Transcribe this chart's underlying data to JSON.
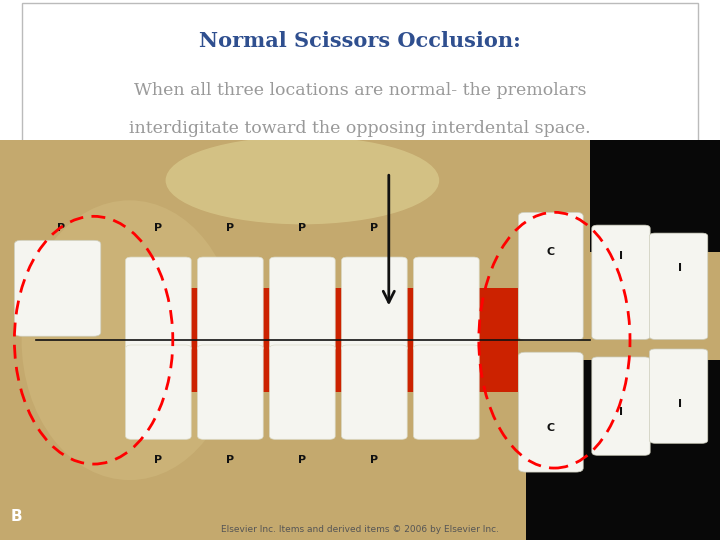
{
  "title": "Normal Scissors Occlusion:",
  "title_color": "#2F4F8F",
  "title_fontsize": 15,
  "body_text_line1": "When all three locations are normal- the premolars",
  "body_text_line2": "interdigitate toward the opposing interdental space.",
  "body_color": "#999999",
  "body_fontsize": 12.5,
  "caption": "Elsevier Inc. Items and derived items © 2006 by Elsevier Inc.",
  "caption_fontsize": 6.5,
  "bg_color": "#ffffff",
  "figure_width": 7.2,
  "figure_height": 5.4,
  "photo_bg_color": "#c4a96e",
  "photo_dark_color": "#080808",
  "gum_color": "#cc2200",
  "tooth_color": "#f5f5f0",
  "label_color_black": "#111111",
  "label_color_white": "#ffffff",
  "red_ellipse_color": "#ff0000",
  "arrow_color": "#111111"
}
